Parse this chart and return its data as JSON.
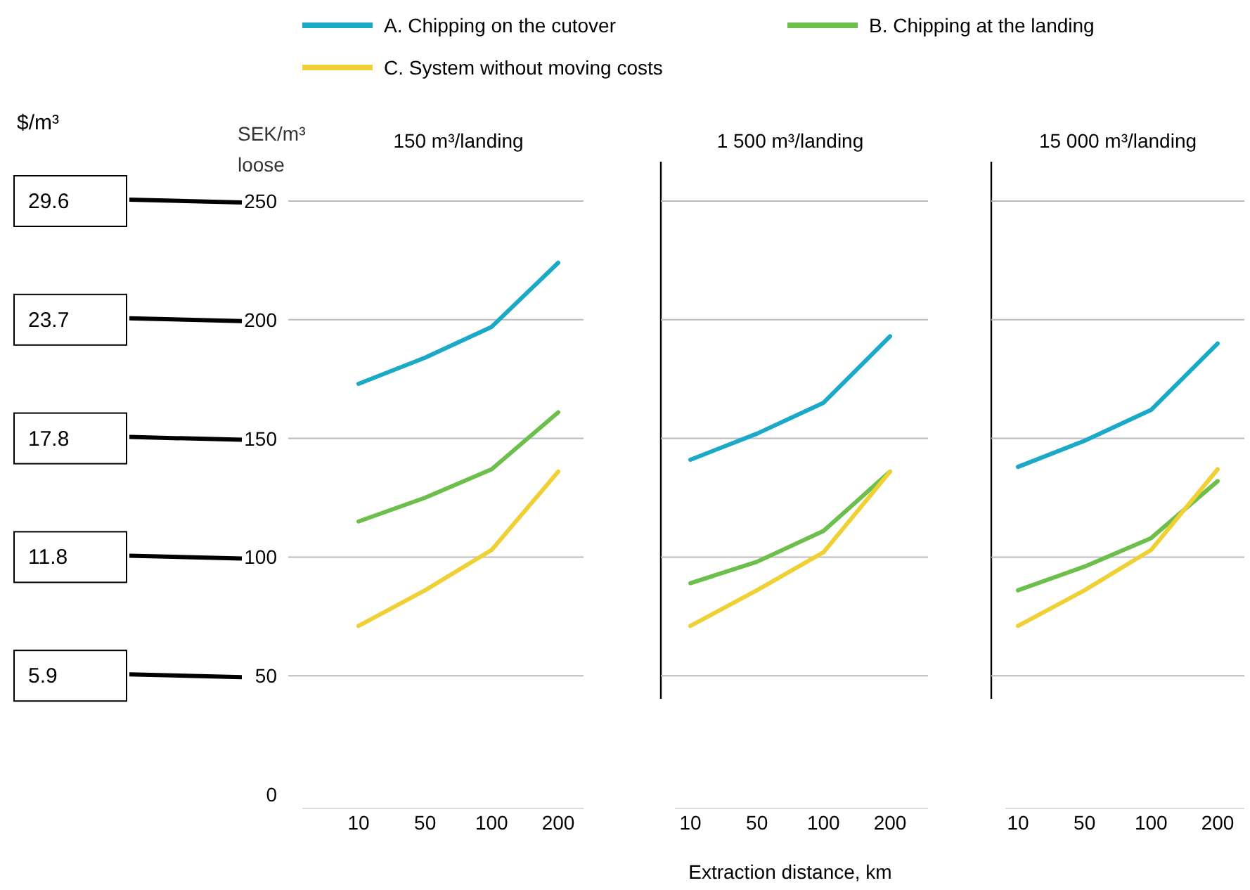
{
  "chart_data": [
    {
      "type": "line",
      "title": "150 m³/landing",
      "ylabel": "SEK/m³ loose",
      "categories": [
        "10",
        "50",
        "100",
        "200"
      ],
      "ylim": [
        0,
        250
      ],
      "yticks": [
        0,
        50,
        100,
        150,
        200,
        250
      ],
      "annotations": [
        "$/m³",
        "29.6",
        "23.7",
        "17.8",
        "11.8",
        "5.9"
      ],
      "grid": "y",
      "legend": "top",
      "series": [
        {
          "name": "A. Chipping on the cutover",
          "color": "#1aa9c6",
          "values": [
            173,
            184,
            197,
            224
          ]
        },
        {
          "name": "B. Chipping at the landing",
          "color": "#6cbf4a",
          "values": [
            115,
            125,
            137,
            161
          ]
        },
        {
          "name": "C. System without moving  costs",
          "color": "#efd135",
          "values": [
            71,
            86,
            103,
            136
          ]
        }
      ]
    },
    {
      "type": "line",
      "title": "1 500 m³/landing",
      "xlabel": "Extraction distance, km",
      "categories": [
        "10",
        "50",
        "100",
        "200"
      ],
      "ylim": [
        0,
        250
      ],
      "yticks": [
        0,
        50,
        100,
        150,
        200,
        250
      ],
      "grid": "y",
      "tick_labels": "x",
      "series": [
        {
          "color": "#1aa9c6",
          "values": [
            141,
            152,
            165,
            193
          ]
        },
        {
          "color": "#6cbf4a",
          "values": [
            89,
            98,
            111,
            136
          ]
        },
        {
          "color": "#efd135",
          "values": [
            71,
            86,
            102,
            136
          ]
        }
      ]
    },
    {
      "type": "line",
      "title": "15 000 m³/landing",
      "categories": [
        "10",
        "50",
        "100",
        "200"
      ],
      "ylim": [
        0,
        250
      ],
      "yticks": [
        0,
        50,
        100,
        150,
        200,
        250
      ],
      "grid": "y",
      "tick_labels": "x",
      "series": [
        {
          "color": "#1aa9c6",
          "values": [
            138,
            149,
            162,
            190
          ]
        },
        {
          "color": "#6cbf4a",
          "values": [
            86,
            96,
            108,
            132
          ]
        },
        {
          "color": "#efd135",
          "values": [
            71,
            86,
            103,
            137
          ]
        }
      ]
    }
  ]
}
